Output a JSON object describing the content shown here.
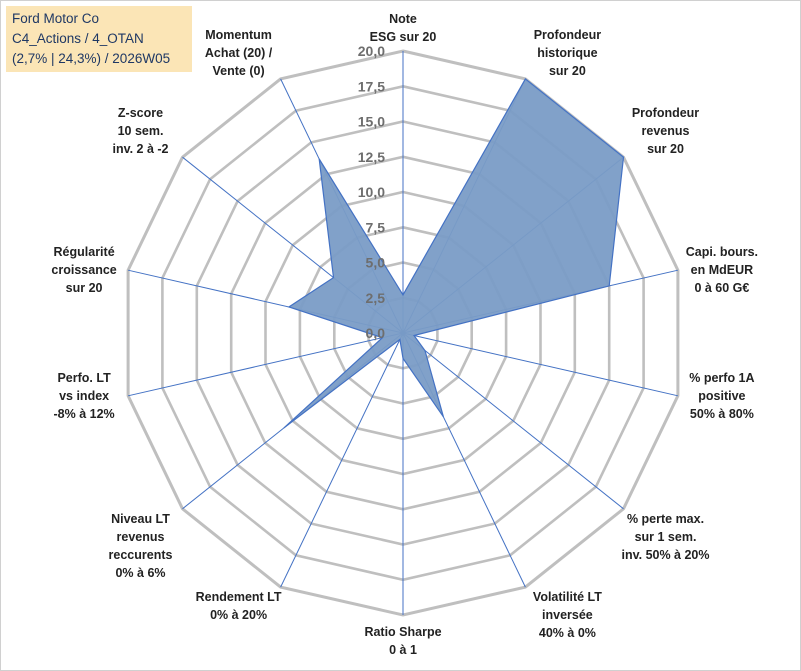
{
  "title_lines": [
    "Ford Motor Co",
    "C4_Actions / 4_OTAN",
    "(2,7% | 24,3%) / 2026W05"
  ],
  "chart_data": {
    "type": "radar",
    "rmin": 0,
    "rmax": 20,
    "tick_step": 2.5,
    "grid_levels": 8,
    "tick_labels": [
      "0,0",
      "2,5",
      "5,0",
      "7,5",
      "10,0",
      "12,5",
      "15,0",
      "17,5",
      "20,0"
    ],
    "colors": {
      "fill": "#7a9cc6",
      "stroke": "#4472c4",
      "grid": "#bfbfbf",
      "spoke": "#4472c4"
    },
    "axes": [
      {
        "label": [
          "Note",
          "ESG sur 20"
        ],
        "value": 2.7
      },
      {
        "label": [
          "Profondeur",
          "historique",
          "sur 20"
        ],
        "value": 20
      },
      {
        "label": [
          "Profondeur",
          "revenus",
          "sur 20"
        ],
        "value": 20
      },
      {
        "label": [
          "Capi. bours.",
          "en MdEUR",
          "0 à 60 G€"
        ],
        "value": 15
      },
      {
        "label": [
          "% perfo 1A",
          "positive",
          "50% à 80%"
        ],
        "value": 0.8
      },
      {
        "label": [
          "% perte max.",
          "sur 1 sem.",
          "inv. 50% à 20%"
        ],
        "value": 2.0
      },
      {
        "label": [
          "Volatilité LT",
          "inversée",
          "40% à 0%"
        ],
        "value": 6.6
      },
      {
        "label": [
          "Ratio Sharpe",
          "0 à 1"
        ],
        "value": 1.8
      },
      {
        "label": [
          "Rendement LT",
          "0% à 20%"
        ],
        "value": 0.5
      },
      {
        "label": [
          "Niveau LT",
          "revenus",
          "reccurents",
          "0% à 6%"
        ],
        "value": 10.8
      },
      {
        "label": [
          "Perfo. LT",
          "vs index",
          "-8% à 12%"
        ],
        "value": 1.5
      },
      {
        "label": [
          "Régularité",
          "croissance",
          "sur 20"
        ],
        "value": 8.3
      },
      {
        "label": [
          "Z-score",
          "10 sem.",
          "inv. 2 à -2"
        ],
        "value": 6.3
      },
      {
        "label": [
          "Momentum",
          "Achat (20) /",
          "Vente (0)"
        ],
        "value": 13.7
      }
    ]
  }
}
